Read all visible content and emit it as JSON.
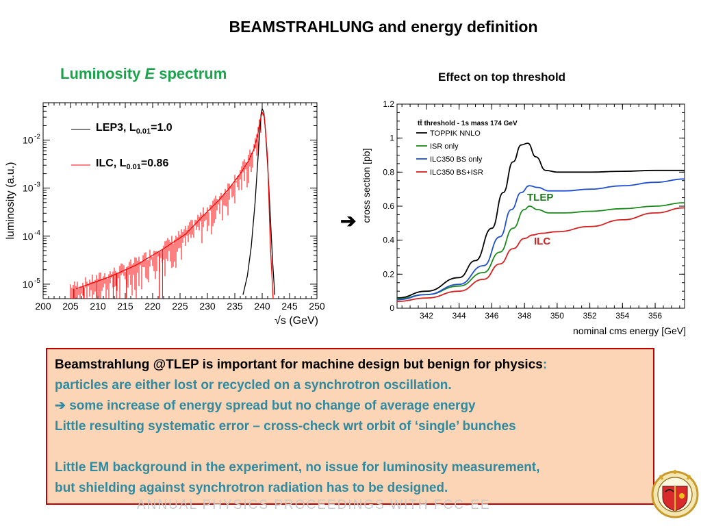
{
  "slide": {
    "title": "BEAMSTRAHLUNG and energy definition",
    "left_heading_pre": "Luminosity ",
    "left_heading_em": "E",
    "left_heading_post": " spectrum",
    "right_heading": "Effect on top threshold",
    "arrow": "➔"
  },
  "chart_data": [
    {
      "type": "line",
      "xlabel": "√s (GeV)",
      "ylabel": "luminosity (a.u.)",
      "xlim": [
        200,
        250
      ],
      "ylim": [
        5e-06,
        0.06
      ],
      "yscale": "log",
      "xticks": [
        "200",
        "205",
        "210",
        "215",
        "220",
        "225",
        "230",
        "235",
        "240",
        "245",
        "250"
      ],
      "yticks": [
        {
          "base": "10",
          "exp": "-2",
          "value": 0.01
        },
        {
          "base": "10",
          "exp": "-3",
          "value": 0.001
        },
        {
          "base": "10",
          "exp": "-4",
          "value": 0.0001
        },
        {
          "base": "10",
          "exp": "-5",
          "value": 1e-05
        }
      ],
      "legend": [
        {
          "text": "LEP3, L",
          "sub": "0.01",
          "rest": "=1.0",
          "color": "#000000"
        },
        {
          "text": "ILC, L",
          "sub": "0.01",
          "rest": "=0.86",
          "color": "#ff0000"
        }
      ],
      "series": [
        {
          "name": "LEP3",
          "color": "#000000",
          "x": [
            236.5,
            237.3,
            238.0,
            238.7,
            239.1,
            239.5,
            239.8,
            240.0,
            240.3,
            240.6,
            241.0,
            241.4,
            241.9,
            242.3
          ],
          "y": [
            6e-06,
            1.5e-05,
            6e-05,
            0.0005,
            0.0025,
            0.012,
            0.035,
            0.045,
            0.038,
            0.016,
            0.003,
            0.0004,
            3e-05,
            6e-06
          ]
        },
        {
          "name": "ILC",
          "color": "#ff0000",
          "x": [
            206,
            212,
            217,
            222,
            226,
            229,
            232,
            234,
            236,
            237.5,
            238.5,
            239.2,
            239.6,
            240.0,
            240.4,
            241.0,
            241.5,
            242.0
          ],
          "y": [
            8e-06,
            1.4e-05,
            2.5e-05,
            5.5e-05,
            0.00011,
            0.00025,
            0.00055,
            0.001,
            0.002,
            0.0037,
            0.0065,
            0.013,
            0.025,
            0.038,
            0.03,
            0.004,
            6e-05,
            5e-06
          ]
        }
      ]
    },
    {
      "type": "line",
      "xlabel": "nominal cms energy [GeV]",
      "ylabel": "cross section [pb]",
      "xlim": [
        340.2,
        357.8
      ],
      "ylim": [
        0,
        1.2
      ],
      "xticks": [
        "342",
        "344",
        "346",
        "348",
        "350",
        "352",
        "354",
        "356"
      ],
      "yticks": [
        "0",
        "0.2",
        "0.4",
        "0.6",
        "0.8",
        "1",
        "1.2"
      ],
      "legend_title": "tt̄ threshold - 1s mass 174 GeV",
      "annotations": [
        {
          "text": "TLEP",
          "color": "#1a7a1a"
        },
        {
          "text": "ILC",
          "color": "#d62020"
        }
      ],
      "series": [
        {
          "name": "TOPPIK NNLO",
          "color": "#000000",
          "x": [
            340.2,
            342,
            344,
            345,
            346,
            346.7,
            347.3,
            347.8,
            348.2,
            348.7,
            349.3,
            350,
            352,
            354,
            356,
            357.8
          ],
          "y": [
            0.06,
            0.1,
            0.18,
            0.28,
            0.47,
            0.68,
            0.86,
            0.96,
            0.97,
            0.89,
            0.81,
            0.8,
            0.8,
            0.805,
            0.81,
            0.81
          ]
        },
        {
          "name": "ISR only",
          "color": "#1a8a1a",
          "x": [
            340.2,
            342,
            344,
            345.5,
            346.5,
            347.3,
            348,
            348.3,
            348.8,
            349.5,
            350.5,
            352,
            354,
            356,
            357.8
          ],
          "y": [
            0.055,
            0.08,
            0.13,
            0.21,
            0.33,
            0.47,
            0.58,
            0.6,
            0.58,
            0.56,
            0.56,
            0.57,
            0.585,
            0.6,
            0.62
          ]
        },
        {
          "name": "ILC350 BS only",
          "color": "#1f4fd0",
          "x": [
            340.2,
            342,
            344,
            345.5,
            346.5,
            347.2,
            347.8,
            348.3,
            348.8,
            349.5,
            350.5,
            352,
            354,
            356,
            357.8
          ],
          "y": [
            0.05,
            0.08,
            0.14,
            0.25,
            0.42,
            0.58,
            0.68,
            0.72,
            0.71,
            0.69,
            0.69,
            0.7,
            0.72,
            0.74,
            0.76
          ]
        },
        {
          "name": "ILC350 BS+ISR",
          "color": "#d62020",
          "x": [
            340.2,
            342,
            344,
            345.5,
            346.5,
            347.3,
            348,
            348.5,
            349,
            350,
            352,
            354,
            356,
            357.8
          ],
          "y": [
            0.04,
            0.06,
            0.1,
            0.17,
            0.26,
            0.35,
            0.41,
            0.43,
            0.44,
            0.45,
            0.48,
            0.52,
            0.56,
            0.59
          ]
        }
      ]
    }
  ],
  "info_box": {
    "line1": "Beamstrahlung @TLEP is important for machine design but benign for physics",
    "line1_colon": ":",
    "line2": "particles are either lost or recycled on a synchrotron oscillation.",
    "line3_arrow": "➔",
    "line3": " some increase of energy spread  but no change of average energy",
    "line4": "Little resulting systematic error – cross-check wrt orbit of ‘single’ bunches",
    "line5": "Little EM background in the experiment, no issue for luminosity measurement,",
    "line6": "but shielding against synchrotron radiation has to be designed."
  },
  "footer": {
    "ghost_text": "ANNUAL PHYSICS PROCEEDINGS WITH FCC-EE"
  },
  "logo": {
    "seal_text": "UNIVERSITAS GENEVENSIS"
  },
  "colors": {
    "box_fill": "#fbd5b5",
    "box_border": "#c00000",
    "box_text": "#2e8aa0",
    "heading_green": "#1aa34a"
  }
}
